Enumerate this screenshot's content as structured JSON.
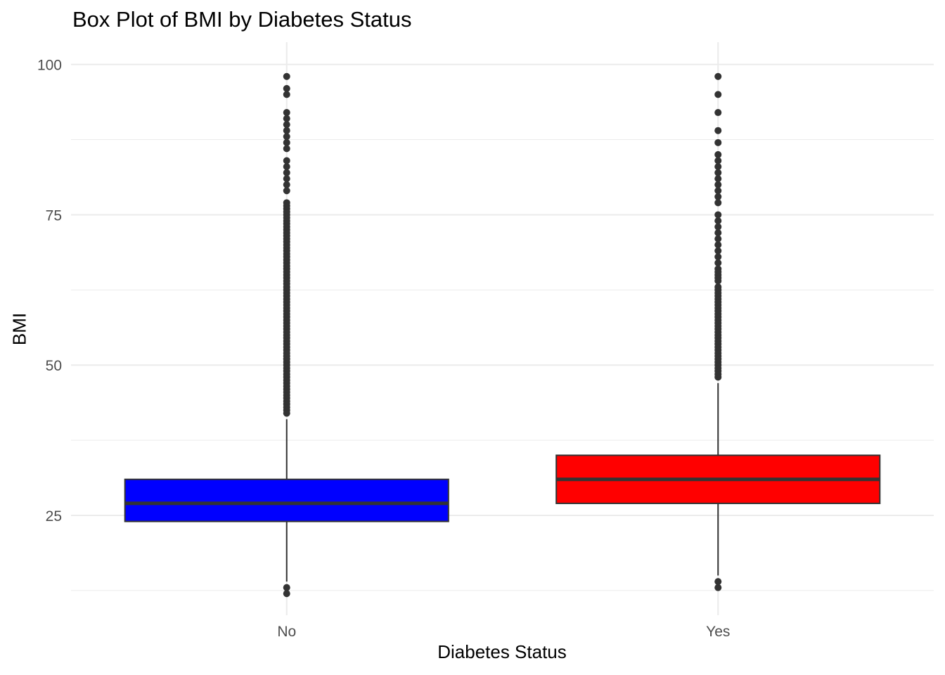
{
  "chart_data": {
    "type": "box",
    "title": "Box Plot of BMI by Diabetes Status",
    "xlabel": "Diabetes Status",
    "ylabel": "BMI",
    "ylim": [
      8.4,
      103.7
    ],
    "yticks": [
      25,
      50,
      75,
      100
    ],
    "y_minor_ticks": [
      12.5,
      37.5,
      62.5,
      87.5
    ],
    "grid": true,
    "legend": "none",
    "categories": [
      "No",
      "Yes"
    ],
    "boxes": [
      {
        "category": "No",
        "fill": "#0000FF",
        "q1": 24,
        "median": 27,
        "q3": 31,
        "whisker_low": 14,
        "whisker_high": 41,
        "outliers": [
          12,
          13,
          42,
          42.5,
          43,
          43.5,
          44,
          44.5,
          45,
          45.5,
          46,
          46.5,
          47,
          47.5,
          48,
          48.5,
          49,
          49.5,
          50,
          50.5,
          51,
          51.5,
          52,
          52.5,
          53,
          53.5,
          54,
          54.5,
          55,
          55.5,
          56,
          56.5,
          57,
          57.5,
          58,
          58.5,
          59,
          59.5,
          60,
          60.5,
          61,
          61.5,
          62,
          62.5,
          63,
          63.5,
          64,
          64.5,
          65,
          65.5,
          66,
          66.5,
          67,
          67.5,
          68,
          68.5,
          69,
          69.5,
          70,
          70.5,
          71,
          71.5,
          72,
          72.5,
          73,
          73.5,
          74,
          74.5,
          75,
          75.5,
          76,
          76.5,
          77,
          79,
          80,
          81,
          82,
          83,
          84,
          86,
          87,
          88,
          89,
          90,
          91,
          92,
          95,
          96,
          98
        ]
      },
      {
        "category": "Yes",
        "fill": "#FF0000",
        "q1": 27,
        "median": 31,
        "q3": 35,
        "whisker_low": 15,
        "whisker_high": 47,
        "outliers": [
          13,
          14,
          48,
          48.5,
          49,
          49.5,
          50,
          50.5,
          51,
          51.5,
          52,
          52.5,
          53,
          53.5,
          54,
          54.5,
          55,
          55.5,
          56,
          56.5,
          57,
          57.5,
          58,
          58.5,
          59,
          59.5,
          60,
          60.5,
          61,
          61.5,
          62,
          62.5,
          63,
          64,
          64.5,
          65,
          65.5,
          66,
          67,
          68,
          69,
          70,
          71,
          72,
          73,
          74,
          75,
          77,
          78,
          79,
          80,
          81,
          82,
          83,
          84,
          85,
          87,
          89,
          92,
          95,
          98
        ]
      }
    ]
  }
}
